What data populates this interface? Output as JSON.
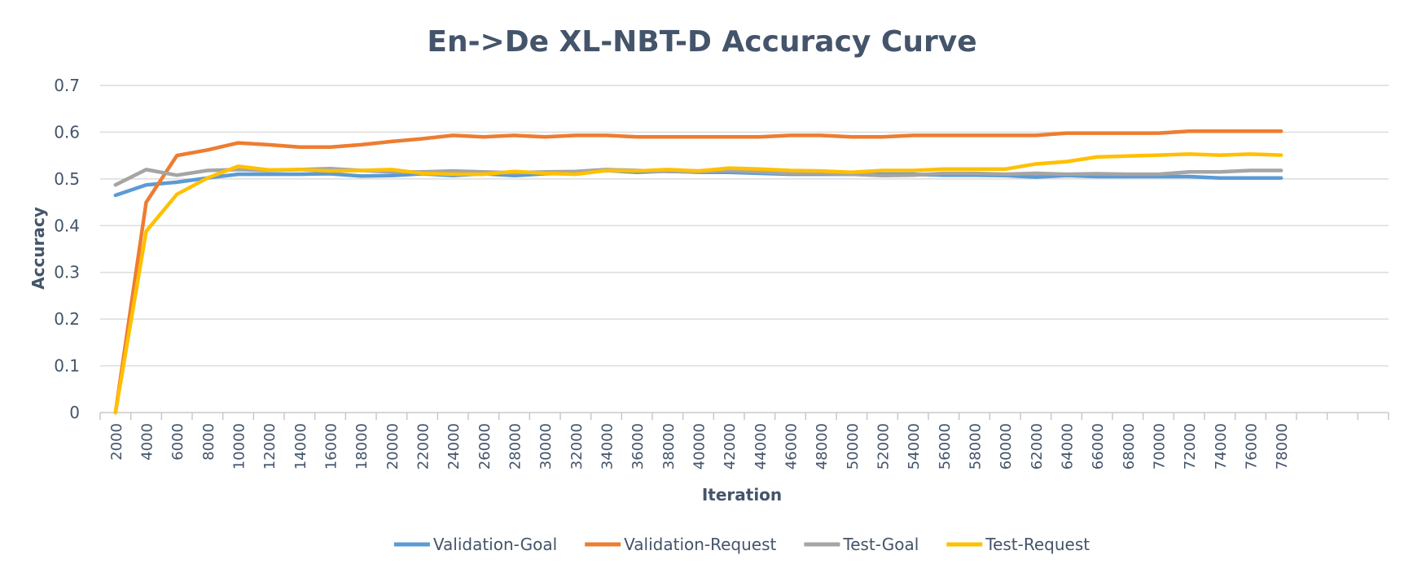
{
  "chart_data": {
    "type": "line",
    "title": "En->De XL-NBT-D Accuracy Curve",
    "xlabel": "Iteration",
    "ylabel": "Accuracy",
    "ylim": [
      0,
      0.7
    ],
    "yticks": [
      "0",
      "0.1",
      "0.2",
      "0.3",
      "0.4",
      "0.5",
      "0.6",
      "0.7"
    ],
    "grid": true,
    "legend_position": "bottom",
    "categories": [
      "2000",
      "4000",
      "6000",
      "8000",
      "10000",
      "12000",
      "14000",
      "16000",
      "18000",
      "20000",
      "22000",
      "24000",
      "26000",
      "28000",
      "30000",
      "32000",
      "34000",
      "36000",
      "38000",
      "40000",
      "42000",
      "44000",
      "46000",
      "48000",
      "50000",
      "52000",
      "54000",
      "56000",
      "58000",
      "60000",
      "62000",
      "64000",
      "66000",
      "68000",
      "70000",
      "72000",
      "74000",
      "76000",
      "78000"
    ],
    "extra_empty_categories": 3,
    "series": [
      {
        "name": "Validation-Goal",
        "color": "#5b9bd5",
        "values": [
          0.465,
          0.487,
          0.493,
          0.502,
          0.51,
          0.51,
          0.51,
          0.511,
          0.506,
          0.507,
          0.511,
          0.507,
          0.511,
          0.507,
          0.511,
          0.512,
          0.518,
          0.514,
          0.517,
          0.514,
          0.514,
          0.512,
          0.51,
          0.51,
          0.51,
          0.51,
          0.51,
          0.508,
          0.508,
          0.507,
          0.504,
          0.507,
          0.505,
          0.505,
          0.505,
          0.505,
          0.502,
          0.502,
          0.502
        ]
      },
      {
        "name": "Validation-Request",
        "color": "#ed7d31",
        "values": [
          0.0,
          0.45,
          0.55,
          0.562,
          0.577,
          0.573,
          0.568,
          0.568,
          0.573,
          0.58,
          0.586,
          0.593,
          0.59,
          0.593,
          0.59,
          0.593,
          0.593,
          0.59,
          0.59,
          0.59,
          0.59,
          0.59,
          0.593,
          0.593,
          0.59,
          0.59,
          0.593,
          0.593,
          0.593,
          0.593,
          0.593,
          0.598,
          0.598,
          0.598,
          0.598,
          0.602,
          0.602,
          0.602,
          0.602
        ]
      },
      {
        "name": "Test-Goal",
        "color": "#a5a5a5",
        "values": [
          0.487,
          0.52,
          0.508,
          0.518,
          0.52,
          0.518,
          0.52,
          0.522,
          0.518,
          0.515,
          0.515,
          0.517,
          0.515,
          0.513,
          0.515,
          0.516,
          0.52,
          0.518,
          0.516,
          0.515,
          0.518,
          0.515,
          0.512,
          0.512,
          0.51,
          0.507,
          0.508,
          0.512,
          0.512,
          0.51,
          0.512,
          0.51,
          0.511,
          0.51,
          0.51,
          0.515,
          0.515,
          0.518,
          0.518
        ]
      },
      {
        "name": "Test-Request",
        "color": "#ffc000",
        "values": [
          0.0,
          0.388,
          0.467,
          0.502,
          0.527,
          0.519,
          0.52,
          0.517,
          0.518,
          0.52,
          0.512,
          0.51,
          0.51,
          0.516,
          0.512,
          0.51,
          0.518,
          0.517,
          0.52,
          0.517,
          0.523,
          0.521,
          0.518,
          0.517,
          0.514,
          0.518,
          0.518,
          0.521,
          0.521,
          0.521,
          0.532,
          0.537,
          0.547,
          0.549,
          0.551,
          0.553,
          0.551,
          0.553,
          0.551
        ]
      }
    ]
  }
}
